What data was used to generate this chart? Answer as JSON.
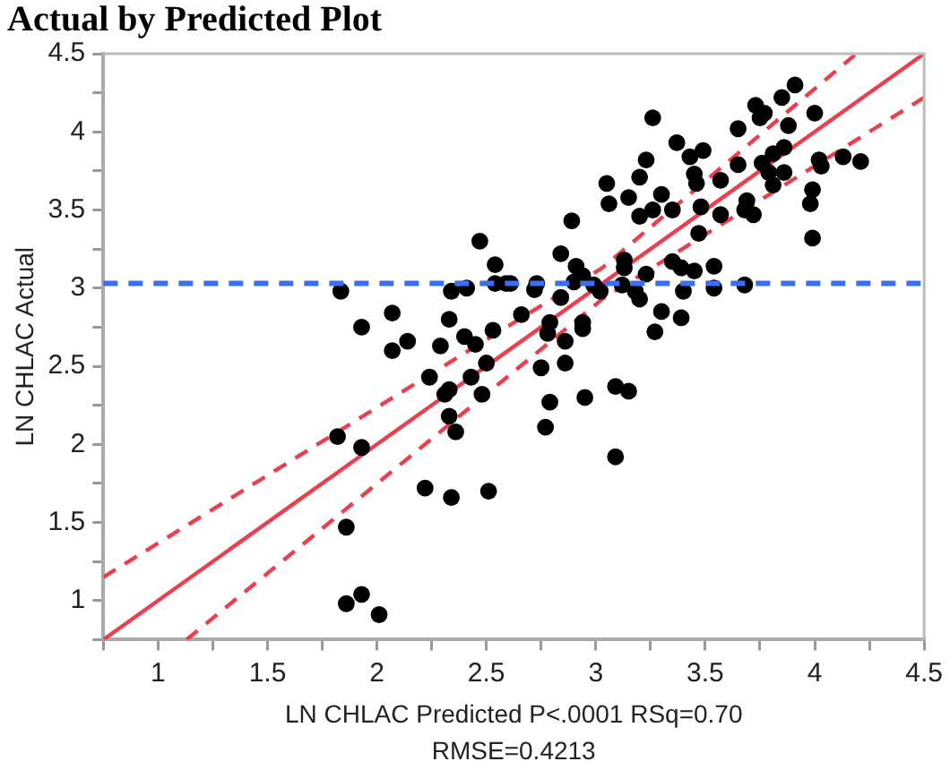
{
  "chart_data": {
    "type": "scatter",
    "title": "Actual by Predicted Plot",
    "xlabel": "LN CHLAC Predicted P<.0001 RSq=0.70",
    "ylabel": "LN CHLAC Actual",
    "annotations": [
      "RMSE=0.4213"
    ],
    "xlim": [
      0.75,
      4.5
    ],
    "ylim": [
      0.75,
      4.5
    ],
    "xticks": [
      {
        "value": 0.75,
        "label": null
      },
      1,
      {
        "value": 1.25,
        "label": null
      },
      1.5,
      {
        "value": 1.75,
        "label": null
      },
      2,
      {
        "value": 2.25,
        "label": null
      },
      2.5,
      {
        "value": 2.75,
        "label": null
      },
      3,
      {
        "value": 3.25,
        "label": null
      },
      3.5,
      {
        "value": 3.75,
        "label": null
      },
      4,
      {
        "value": 4.25,
        "label": null
      },
      4.5
    ],
    "yticks": [
      {
        "value": 0.75,
        "label": null
      },
      1,
      {
        "value": 1.25,
        "label": null
      },
      1.5,
      {
        "value": 1.75,
        "label": null
      },
      2,
      {
        "value": 2.25,
        "label": null
      },
      2.5,
      {
        "value": 2.75,
        "label": null
      },
      3,
      {
        "value": 3.25,
        "label": null
      },
      3.5,
      {
        "value": 3.75,
        "label": null
      },
      4,
      {
        "value": 4.25,
        "label": null
      },
      4.5
    ],
    "grid": false,
    "legend": false,
    "ref_lines": [
      {
        "axis": "y",
        "value": 3.03,
        "label": null,
        "color": "#3a6ff0",
        "line_style": "dashed"
      }
    ],
    "series": [
      {
        "marker": "circle",
        "color": "#000000",
        "x": [
          2.47,
          2.54,
          2.54,
          2.59,
          1.835,
          2.34,
          2.41,
          2.07,
          1.93,
          2.33,
          2.14,
          2.07,
          2.29,
          2.4,
          2.45,
          2.53,
          2.5,
          1.82,
          1.93,
          2.24,
          2.33,
          2.31,
          2.43,
          2.48,
          2.33,
          2.36,
          2.22,
          2.34,
          2.51,
          1.86,
          1.86,
          1.93,
          2.01,
          2.78,
          2.86,
          2.75,
          2.86,
          2.79,
          2.95,
          3.09,
          3.15,
          2.77,
          3.09,
          3.27,
          2.94,
          2.61,
          2.73,
          2.72,
          2.84,
          2.84,
          2.89,
          2.91,
          2.94,
          2.9,
          2.99,
          3.02,
          3.13,
          3.13,
          3.12,
          3.18,
          3.2,
          3.23,
          2.66,
          2.79,
          2.94,
          3.3,
          3.39,
          3.35,
          3.39,
          3.45,
          3.54,
          3.54,
          3.4,
          3.68,
          3.47,
          3.26,
          3.23,
          3.37,
          3.43,
          3.49,
          3.2,
          3.05,
          3.06,
          3.15,
          3.2,
          3.26,
          3.3,
          3.35,
          3.45,
          3.46,
          3.48,
          3.57,
          3.57,
          3.65,
          3.65,
          3.69,
          3.68,
          3.72,
          3.73,
          3.77,
          3.75,
          3.85,
          3.91,
          3.88,
          4.0,
          3.76,
          3.81,
          3.86,
          3.79,
          3.86,
          3.81,
          4.02,
          4.03,
          4.13,
          4.21,
          3.99,
          3.98,
          3.99
        ],
        "values": [
          3.3,
          3.15,
          3.03,
          3.03,
          2.98,
          2.98,
          3.0,
          2.84,
          2.75,
          2.8,
          2.66,
          2.6,
          2.63,
          2.69,
          2.64,
          2.73,
          2.52,
          2.05,
          1.98,
          2.43,
          2.35,
          2.32,
          2.43,
          2.32,
          2.18,
          2.08,
          1.72,
          1.66,
          1.7,
          1.47,
          0.98,
          1.04,
          0.91,
          2.71,
          2.66,
          2.49,
          2.52,
          2.27,
          2.3,
          2.37,
          2.34,
          2.11,
          1.92,
          2.72,
          2.74,
          3.03,
          3.03,
          2.99,
          2.94,
          3.22,
          3.43,
          3.14,
          3.08,
          3.04,
          3.02,
          2.98,
          3.18,
          3.13,
          3.02,
          2.98,
          2.93,
          3.09,
          2.83,
          2.78,
          2.78,
          2.85,
          2.81,
          3.17,
          3.13,
          3.11,
          3.14,
          3.0,
          2.98,
          3.02,
          3.35,
          4.09,
          3.82,
          3.93,
          3.84,
          3.88,
          3.71,
          3.67,
          3.54,
          3.58,
          3.46,
          3.5,
          3.6,
          3.5,
          3.73,
          3.67,
          3.52,
          3.69,
          3.47,
          4.02,
          3.79,
          3.56,
          3.5,
          3.47,
          4.17,
          4.12,
          4.09,
          4.22,
          4.3,
          4.04,
          4.12,
          3.8,
          3.86,
          3.9,
          3.74,
          3.74,
          3.66,
          3.82,
          3.78,
          3.84,
          3.81,
          3.63,
          3.54,
          3.32
        ]
      },
      {
        "type": "line",
        "color": "#ee3e4e",
        "line_style": "solid",
        "x": [
          0.75,
          4.5
        ],
        "values": [
          0.75,
          4.5
        ]
      },
      {
        "type": "line",
        "color": "#ee3e4e",
        "line_style": "dashed",
        "x": [
          0.75,
          3.03,
          4.19
        ],
        "values": [
          1.15,
          3.13,
          4.5
        ]
      },
      {
        "type": "line",
        "color": "#ee3e4e",
        "line_style": "dashed",
        "x": [
          1.13,
          3.03,
          4.5
        ],
        "values": [
          0.75,
          2.93,
          4.22
        ]
      }
    ]
  }
}
